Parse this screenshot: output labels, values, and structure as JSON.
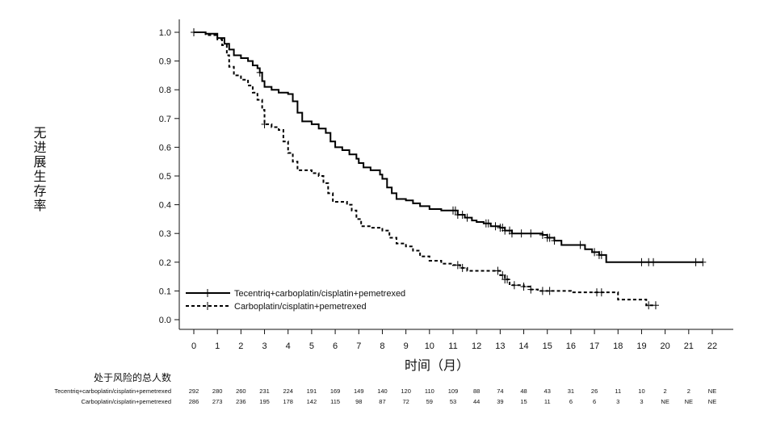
{
  "chart_data": {
    "type": "line",
    "xlabel": "时间（月）",
    "ylabel": "无进展生存率",
    "xlim": [
      0,
      22
    ],
    "ylim": [
      0,
      1
    ],
    "x_ticks": [
      "0",
      "1",
      "2",
      "3",
      "4",
      "5",
      "6",
      "7",
      "8",
      "9",
      "10",
      "11",
      "12",
      "13",
      "14",
      "15",
      "16",
      "17",
      "18",
      "19",
      "20",
      "21",
      "22"
    ],
    "y_ticks": [
      "0.0",
      "0.1",
      "0.2",
      "0.3",
      "0.4",
      "0.5",
      "0.6",
      "0.7",
      "0.8",
      "0.9",
      "1.0"
    ],
    "grid": false,
    "legend_position": "bottom-left",
    "series": [
      {
        "name": "Tecentriq+carboplatin/cisplatin+pemetrexed",
        "style": "solid",
        "color": "#000000",
        "points": [
          [
            0,
            1.0
          ],
          [
            0.5,
            0.995
          ],
          [
            1.0,
            0.98
          ],
          [
            1.3,
            0.96
          ],
          [
            1.5,
            0.94
          ],
          [
            1.7,
            0.92
          ],
          [
            2.0,
            0.91
          ],
          [
            2.3,
            0.9
          ],
          [
            2.5,
            0.885
          ],
          [
            2.7,
            0.875
          ],
          [
            2.8,
            0.86
          ],
          [
            2.9,
            0.83
          ],
          [
            3.0,
            0.81
          ],
          [
            3.3,
            0.8
          ],
          [
            3.6,
            0.79
          ],
          [
            4.0,
            0.785
          ],
          [
            4.2,
            0.76
          ],
          [
            4.4,
            0.72
          ],
          [
            4.6,
            0.69
          ],
          [
            5.0,
            0.68
          ],
          [
            5.3,
            0.665
          ],
          [
            5.6,
            0.65
          ],
          [
            5.8,
            0.62
          ],
          [
            6.0,
            0.6
          ],
          [
            6.3,
            0.59
          ],
          [
            6.6,
            0.575
          ],
          [
            6.9,
            0.56
          ],
          [
            7.0,
            0.545
          ],
          [
            7.2,
            0.53
          ],
          [
            7.5,
            0.52
          ],
          [
            7.9,
            0.505
          ],
          [
            8.0,
            0.49
          ],
          [
            8.2,
            0.46
          ],
          [
            8.4,
            0.44
          ],
          [
            8.6,
            0.42
          ],
          [
            9.0,
            0.415
          ],
          [
            9.3,
            0.405
          ],
          [
            9.6,
            0.395
          ],
          [
            10.0,
            0.385
          ],
          [
            10.5,
            0.38
          ],
          [
            11.0,
            0.38
          ],
          [
            11.2,
            0.365
          ],
          [
            11.5,
            0.355
          ],
          [
            11.8,
            0.345
          ],
          [
            12.0,
            0.34
          ],
          [
            12.3,
            0.335
          ],
          [
            12.6,
            0.325
          ],
          [
            13.0,
            0.32
          ],
          [
            13.2,
            0.31
          ],
          [
            13.5,
            0.3
          ],
          [
            14.0,
            0.3
          ],
          [
            14.5,
            0.3
          ],
          [
            14.8,
            0.295
          ],
          [
            15.0,
            0.285
          ],
          [
            15.3,
            0.275
          ],
          [
            15.6,
            0.26
          ],
          [
            16.3,
            0.26
          ],
          [
            16.6,
            0.245
          ],
          [
            16.9,
            0.235
          ],
          [
            17.2,
            0.225
          ],
          [
            17.5,
            0.2
          ],
          [
            18.0,
            0.2
          ],
          [
            19.0,
            0.2
          ],
          [
            20.0,
            0.2
          ],
          [
            21.0,
            0.2
          ],
          [
            21.6,
            0.2
          ]
        ],
        "censor_times": [
          0,
          2.8,
          11.0,
          11.1,
          11.2,
          11.4,
          11.6,
          12.4,
          12.5,
          12.8,
          13.0,
          13.1,
          13.2,
          13.4,
          13.5,
          13.9,
          14.3,
          14.8,
          15.0,
          15.1,
          15.3,
          16.4,
          17.0,
          17.2,
          17.3,
          19.0,
          19.3,
          19.5,
          21.3,
          21.6
        ]
      },
      {
        "name": "Carboplatin/cisplatin+pemetrexed",
        "style": "dashed",
        "color": "#000000",
        "points": [
          [
            0,
            1.0
          ],
          [
            0.5,
            0.99
          ],
          [
            1.0,
            0.975
          ],
          [
            1.2,
            0.955
          ],
          [
            1.4,
            0.92
          ],
          [
            1.5,
            0.88
          ],
          [
            1.7,
            0.85
          ],
          [
            2.0,
            0.835
          ],
          [
            2.3,
            0.815
          ],
          [
            2.5,
            0.79
          ],
          [
            2.7,
            0.765
          ],
          [
            2.9,
            0.73
          ],
          [
            3.0,
            0.68
          ],
          [
            3.3,
            0.67
          ],
          [
            3.6,
            0.66
          ],
          [
            3.8,
            0.62
          ],
          [
            4.0,
            0.58
          ],
          [
            4.2,
            0.55
          ],
          [
            4.4,
            0.52
          ],
          [
            5.0,
            0.51
          ],
          [
            5.3,
            0.5
          ],
          [
            5.5,
            0.475
          ],
          [
            5.7,
            0.44
          ],
          [
            5.9,
            0.41
          ],
          [
            6.5,
            0.4
          ],
          [
            6.7,
            0.38
          ],
          [
            6.9,
            0.35
          ],
          [
            7.1,
            0.325
          ],
          [
            7.5,
            0.32
          ],
          [
            8.0,
            0.31
          ],
          [
            8.3,
            0.285
          ],
          [
            8.6,
            0.265
          ],
          [
            9.0,
            0.255
          ],
          [
            9.3,
            0.24
          ],
          [
            9.6,
            0.22
          ],
          [
            10.0,
            0.205
          ],
          [
            10.5,
            0.195
          ],
          [
            11.0,
            0.19
          ],
          [
            11.3,
            0.18
          ],
          [
            11.6,
            0.17
          ],
          [
            12.5,
            0.17
          ],
          [
            13.0,
            0.155
          ],
          [
            13.2,
            0.14
          ],
          [
            13.4,
            0.12
          ],
          [
            14.0,
            0.115
          ],
          [
            14.3,
            0.105
          ],
          [
            14.6,
            0.1
          ],
          [
            16.0,
            0.095
          ],
          [
            17.0,
            0.095
          ],
          [
            17.5,
            0.095
          ],
          [
            18.0,
            0.07
          ],
          [
            19.0,
            0.07
          ],
          [
            19.2,
            0.05
          ],
          [
            19.6,
            0.05
          ]
        ],
        "censor_times": [
          0,
          3.0,
          11.2,
          11.4,
          12.9,
          13.1,
          13.2,
          13.3,
          13.6,
          14.0,
          14.3,
          14.8,
          15.1,
          17.1,
          17.3,
          19.3,
          19.6
        ]
      }
    ],
    "risk_table": {
      "title": "处于风险的总人数",
      "rows": [
        {
          "label": "Tecentriq+carboplatin/cisplatin+pemetrexed",
          "values": [
            "292",
            "280",
            "260",
            "231",
            "224",
            "191",
            "169",
            "149",
            "140",
            "120",
            "110",
            "109",
            "88",
            "74",
            "48",
            "43",
            "31",
            "26",
            "11",
            "10",
            "2",
            "2",
            "NE"
          ]
        },
        {
          "label": "Carboplatin/cisplatin+pemetrexed",
          "values": [
            "286",
            "273",
            "236",
            "195",
            "178",
            "142",
            "115",
            "98",
            "87",
            "72",
            "59",
            "53",
            "44",
            "39",
            "15",
            "11",
            "6",
            "6",
            "3",
            "3",
            "NE",
            "NE",
            "NE"
          ]
        }
      ]
    }
  }
}
